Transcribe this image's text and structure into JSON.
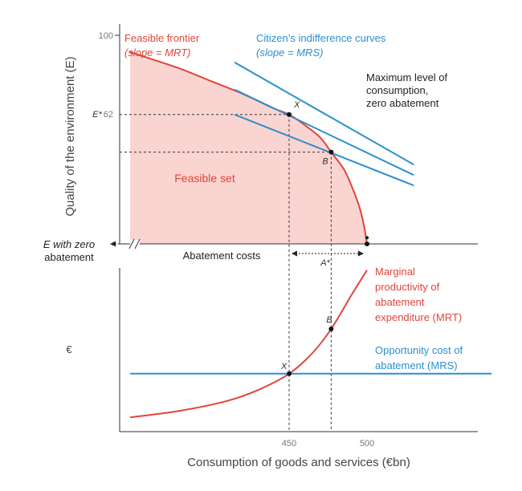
{
  "chart_data": [
    {
      "type": "line",
      "panel": "top",
      "ylabel": "Quality of the environment (E)",
      "ylim": [
        0,
        100
      ],
      "y_ticks": [
        "100",
        "62"
      ],
      "e_star_label": "E*",
      "e_zero_label": [
        "E with zero",
        "abatement"
      ],
      "series": [
        {
          "name": "Feasible frontier (slope = MRT)",
          "name_parts": [
            "Feasible frontier",
            "(slope = MRT)"
          ],
          "color": "#e0453a",
          "x": [
            348,
            360,
            380,
            400,
            420,
            440,
            450,
            460,
            470,
            477,
            485,
            490,
            495,
            498,
            500
          ],
          "y": [
            92,
            89,
            84,
            78,
            72,
            65,
            62,
            57,
            51,
            44,
            36,
            28,
            18,
            9,
            0
          ]
        }
      ],
      "indifference_curves": {
        "name_parts": [
          "Citizen’s indifference curves",
          "(slope = MRS)"
        ],
        "color": "#2b8fd0",
        "lines": [
          {
            "x": [
              415,
              530
            ],
            "y": [
              87,
              38
            ]
          },
          {
            "x": [
              415,
              530
            ],
            "y": [
              74,
              33
            ]
          },
          {
            "x": [
              415,
              530
            ],
            "y": [
              62,
              28
            ]
          }
        ]
      },
      "points": [
        {
          "label": "X",
          "x": 450,
          "y": 62
        },
        {
          "label": "B",
          "x": 477,
          "y": 44
        }
      ],
      "annotations": {
        "feasible_set": "Feasible set",
        "max_consumption": [
          "Maximum level of",
          "consumption,",
          "zero abatement"
        ],
        "abatement_costs": "Abatement costs",
        "a_star": "A*"
      }
    },
    {
      "type": "line",
      "panel": "bottom",
      "ylabel": "€",
      "xlabel": "Consumption of goods and services (€bn)",
      "x_ticks": [
        450,
        500
      ],
      "series": [
        {
          "name": "Marginal productivity of abatement expenditure (MRT)",
          "name_parts": [
            "Marginal",
            "productivity of",
            "abatement",
            "expenditure (MRT)"
          ],
          "color": "#e0453a",
          "x": [
            348,
            380,
            410,
            430,
            450,
            465,
            477,
            490,
            500
          ],
          "y": [
            0.5,
            1.1,
            2.0,
            3.0,
            4.5,
            6.4,
            8.6,
            11.7,
            14.0
          ]
        },
        {
          "name": "Opportunity cost of abatement (MRS)",
          "name_parts": [
            "Opportunity cost of",
            "abatement (MRS)"
          ],
          "color": "#2b8fd0",
          "x": [
            348,
            580
          ],
          "y": [
            4.5,
            4.5
          ]
        }
      ],
      "points": [
        {
          "label": "X",
          "x": 450,
          "y": 4.5
        },
        {
          "label": "B",
          "x": 477,
          "y": 8.6
        }
      ]
    }
  ]
}
